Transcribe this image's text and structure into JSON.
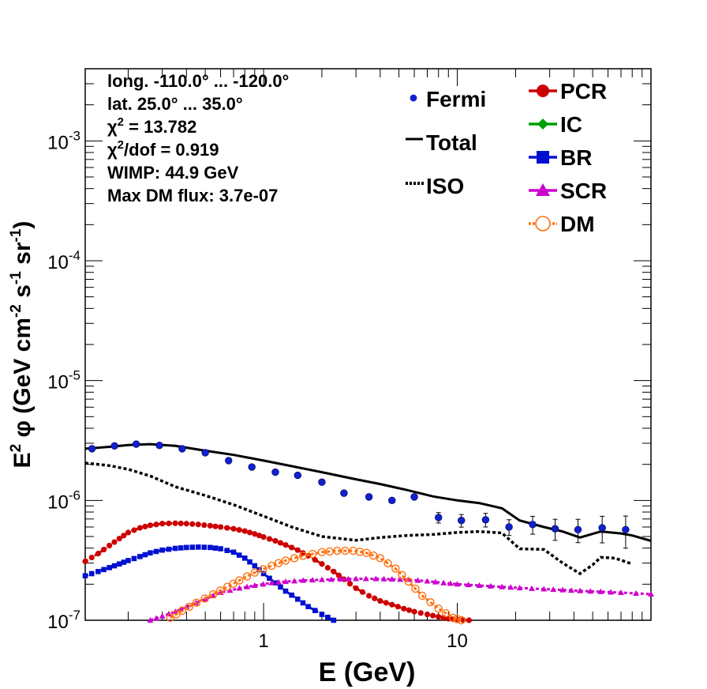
{
  "chart_data": {
    "type": "line",
    "xscale": "log",
    "yscale": "log",
    "xlim": [
      0.12,
      100
    ],
    "ylim": [
      1e-07,
      0.004
    ],
    "xlabel": "E (GeV)",
    "ylabel_parts": [
      "E",
      "2",
      "  φ (GeV cm",
      "-2",
      " s",
      "-1",
      " sr",
      "-1",
      ")"
    ],
    "x_tick_labels": [
      {
        "value": 1,
        "label": "1"
      },
      {
        "value": 10,
        "label": "10"
      }
    ],
    "y_tick_labels": [
      {
        "value": 1e-07,
        "base": "10",
        "exp": "-7"
      },
      {
        "value": 1e-06,
        "base": "10",
        "exp": "-6"
      },
      {
        "value": 1e-05,
        "base": "10",
        "exp": "-5"
      },
      {
        "value": 0.0001,
        "base": "10",
        "exp": "-4"
      },
      {
        "value": 0.001,
        "base": "10",
        "exp": "-3"
      }
    ],
    "info_lines": [
      [
        {
          "t": "long. -110.0° ... -120.0°"
        }
      ],
      [
        {
          "t": "lat. 25.0° ... 35.0°"
        }
      ],
      [
        {
          "t": "χ"
        },
        {
          "t": "2",
          "sup": true
        },
        {
          "t": " = 13.782"
        }
      ],
      [
        {
          "t": "χ"
        },
        {
          "t": "2",
          "sup": true
        },
        {
          "t": "/dof = 0.919"
        }
      ],
      [
        {
          "t": "WIMP: 44.9 GeV"
        }
      ],
      [
        {
          "t": "Max DM flux: 3.7e-07"
        }
      ]
    ],
    "legend_left": [
      {
        "label": "Fermi",
        "style": "dot",
        "color": "#1020d0"
      },
      {
        "label": "Total",
        "style": "line",
        "color": "#000000"
      },
      {
        "label": "ISO",
        "style": "dotted",
        "color": "#000000"
      }
    ],
    "legend_right": [
      {
        "label": "PCR",
        "style": "circle",
        "color": "#cc0000"
      },
      {
        "label": "IC",
        "style": "diamond",
        "color": "#00a000"
      },
      {
        "label": "BR",
        "style": "square",
        "color": "#0010d0"
      },
      {
        "label": "SCR",
        "style": "triangle",
        "color": "#cc00cc"
      },
      {
        "label": "DM",
        "style": "opencircle",
        "color": "#ff7010"
      }
    ],
    "series": [
      {
        "name": "Total",
        "style": "line",
        "color": "#000000",
        "x": [
          0.12,
          0.16,
          0.2,
          0.26,
          0.35,
          0.5,
          0.7,
          1.0,
          1.4,
          2.0,
          3.0,
          4.0,
          5.5,
          7.5,
          10,
          13,
          17,
          21,
          28,
          35,
          43,
          55,
          70,
          80,
          100
        ],
        "y": [
          2.7e-06,
          2.8e-06,
          2.9e-06,
          2.95e-06,
          2.85e-06,
          2.6e-06,
          2.4e-06,
          2.15e-06,
          1.93e-06,
          1.72e-06,
          1.5e-06,
          1.37e-06,
          1.22e-06,
          1.08e-06,
          1e-06,
          9.5e-07,
          8.6e-07,
          6.8e-07,
          6e-07,
          5.5e-07,
          4.9e-07,
          5.5e-07,
          5.3e-07,
          5.1e-07,
          4.6e-07
        ]
      },
      {
        "name": "ISO",
        "style": "dotted",
        "color": "#000000",
        "x": [
          0.12,
          0.16,
          0.2,
          0.26,
          0.35,
          0.5,
          0.7,
          1.0,
          1.4,
          2.0,
          3.0,
          4.0,
          5.5,
          7.5,
          10,
          13,
          17,
          21,
          28,
          35,
          43,
          50,
          55,
          65,
          80
        ],
        "y": [
          2.05e-06,
          1.95e-06,
          1.82e-06,
          1.6e-06,
          1.3e-06,
          1.1e-06,
          9.2e-07,
          7.4e-07,
          6e-07,
          5e-07,
          4.65e-07,
          4.9e-07,
          5.1e-07,
          5.2e-07,
          5.4e-07,
          5.5e-07,
          5.35e-07,
          3.95e-07,
          3.9e-07,
          3e-07,
          2.45e-07,
          2.9e-07,
          3.35e-07,
          3.3e-07,
          2.95e-07
        ]
      },
      {
        "name": "PCR",
        "style": "circle",
        "color": "#cc0000",
        "x": [
          0.12,
          0.14,
          0.16,
          0.18,
          0.2,
          0.23,
          0.26,
          0.3,
          0.35,
          0.4,
          0.46,
          0.53,
          0.6,
          0.7,
          0.8,
          0.9,
          1.0,
          1.15,
          1.3,
          1.5,
          1.7,
          2.0,
          2.3,
          2.6,
          3.0,
          3.5,
          4.0,
          4.6,
          5.3,
          6.0,
          7.0,
          8.0,
          9.0,
          10.0,
          11.5
        ],
        "y": [
          3.1e-07,
          3.6e-07,
          4.2e-07,
          4.8e-07,
          5.4e-07,
          5.9e-07,
          6.2e-07,
          6.4e-07,
          6.45e-07,
          6.4e-07,
          6.3e-07,
          6.15e-07,
          6e-07,
          5.8e-07,
          5.55e-07,
          5.25e-07,
          4.95e-07,
          4.6e-07,
          4.25e-07,
          3.85e-07,
          3.45e-07,
          2.95e-07,
          2.55e-07,
          2.2e-07,
          1.85e-07,
          1.6e-07,
          1.45e-07,
          1.35e-07,
          1.25e-07,
          1.18e-07,
          1.12e-07,
          1.07e-07,
          1.03e-07,
          1.01e-07,
          1e-07
        ]
      },
      {
        "name": "BR",
        "style": "square",
        "color": "#0010d0",
        "x": [
          0.12,
          0.14,
          0.16,
          0.18,
          0.2,
          0.23,
          0.26,
          0.3,
          0.35,
          0.4,
          0.46,
          0.53,
          0.6,
          0.7,
          0.8,
          0.9,
          1.0,
          1.15,
          1.3,
          1.5,
          1.7,
          2.0,
          2.3
        ],
        "y": [
          2.35e-07,
          2.55e-07,
          2.75e-07,
          2.95e-07,
          3.15e-07,
          3.4e-07,
          3.65e-07,
          3.85e-07,
          3.98e-07,
          4.05e-07,
          4.08e-07,
          4.05e-07,
          3.95e-07,
          3.7e-07,
          3.3e-07,
          2.85e-07,
          2.45e-07,
          2.05e-07,
          1.75e-07,
          1.5e-07,
          1.3e-07,
          1.12e-07,
          1e-07
        ]
      },
      {
        "name": "SCR",
        "style": "triangle",
        "color": "#cc00cc",
        "x": [
          0.26,
          0.3,
          0.35,
          0.4,
          0.5,
          0.6,
          0.75,
          0.9,
          1.1,
          1.3,
          1.6,
          2.0,
          2.5,
          3.0,
          3.8,
          4.6,
          5.6,
          7.0,
          8.5,
          10,
          13,
          17,
          21,
          28,
          35,
          43,
          55,
          70,
          100
        ],
        "y": [
          1e-07,
          1.08e-07,
          1.18e-07,
          1.3e-07,
          1.5e-07,
          1.7e-07,
          1.85e-07,
          1.95e-07,
          2.05e-07,
          2.1e-07,
          2.15e-07,
          2.18e-07,
          2.2e-07,
          2.22e-07,
          2.22e-07,
          2.2e-07,
          2.18e-07,
          2.12e-07,
          2.05e-07,
          2e-07,
          1.95e-07,
          1.9e-07,
          1.86e-07,
          1.82e-07,
          1.79e-07,
          1.76e-07,
          1.73e-07,
          1.7e-07,
          1.65e-07
        ]
      },
      {
        "name": "DM",
        "style": "opencircle",
        "color": "#ff7010",
        "x": [
          0.33,
          0.38,
          0.45,
          0.55,
          0.65,
          0.75,
          0.9,
          1.1,
          1.3,
          1.6,
          2.0,
          2.4,
          2.9,
          3.4,
          4.0,
          4.8,
          5.6,
          6.6,
          8.0,
          9.5,
          10.5
        ],
        "y": [
          1.05e-07,
          1.2e-07,
          1.4e-07,
          1.65e-07,
          1.9e-07,
          2.15e-07,
          2.5e-07,
          2.85e-07,
          3.15e-07,
          3.45e-07,
          3.7e-07,
          3.8e-07,
          3.8e-07,
          3.65e-07,
          3.3e-07,
          2.7e-07,
          2.1e-07,
          1.6e-07,
          1.25e-07,
          1.05e-07,
          1e-07
        ]
      },
      {
        "name": "Fermi",
        "style": "points",
        "color": "#1020d0",
        "x": [
          0.13,
          0.17,
          0.22,
          0.29,
          0.38,
          0.5,
          0.66,
          0.87,
          1.15,
          1.5,
          2.0,
          2.6,
          3.5,
          4.6,
          6.0,
          8.0,
          10.5,
          14,
          18.5,
          24.5,
          32,
          42,
          56,
          74
        ],
        "y": [
          2.7e-06,
          2.85e-06,
          2.95e-06,
          2.88e-06,
          2.7e-06,
          2.5e-06,
          2.15e-06,
          1.9e-06,
          1.72e-06,
          1.62e-06,
          1.42e-06,
          1.15e-06,
          1.07e-06,
          1e-06,
          1.07e-06,
          7.2e-07,
          6.8e-07,
          6.9e-07,
          6e-07,
          6.3e-07,
          5.8e-07,
          5.7e-07,
          5.9e-07,
          5.7e-07
        ],
        "yerr_rel": [
          0.02,
          0.02,
          0.02,
          0.02,
          0.02,
          0.02,
          0.03,
          0.03,
          0.03,
          0.03,
          0.04,
          0.05,
          0.05,
          0.06,
          0.06,
          0.1,
          0.12,
          0.13,
          0.15,
          0.17,
          0.2,
          0.22,
          0.25,
          0.3
        ]
      }
    ]
  }
}
